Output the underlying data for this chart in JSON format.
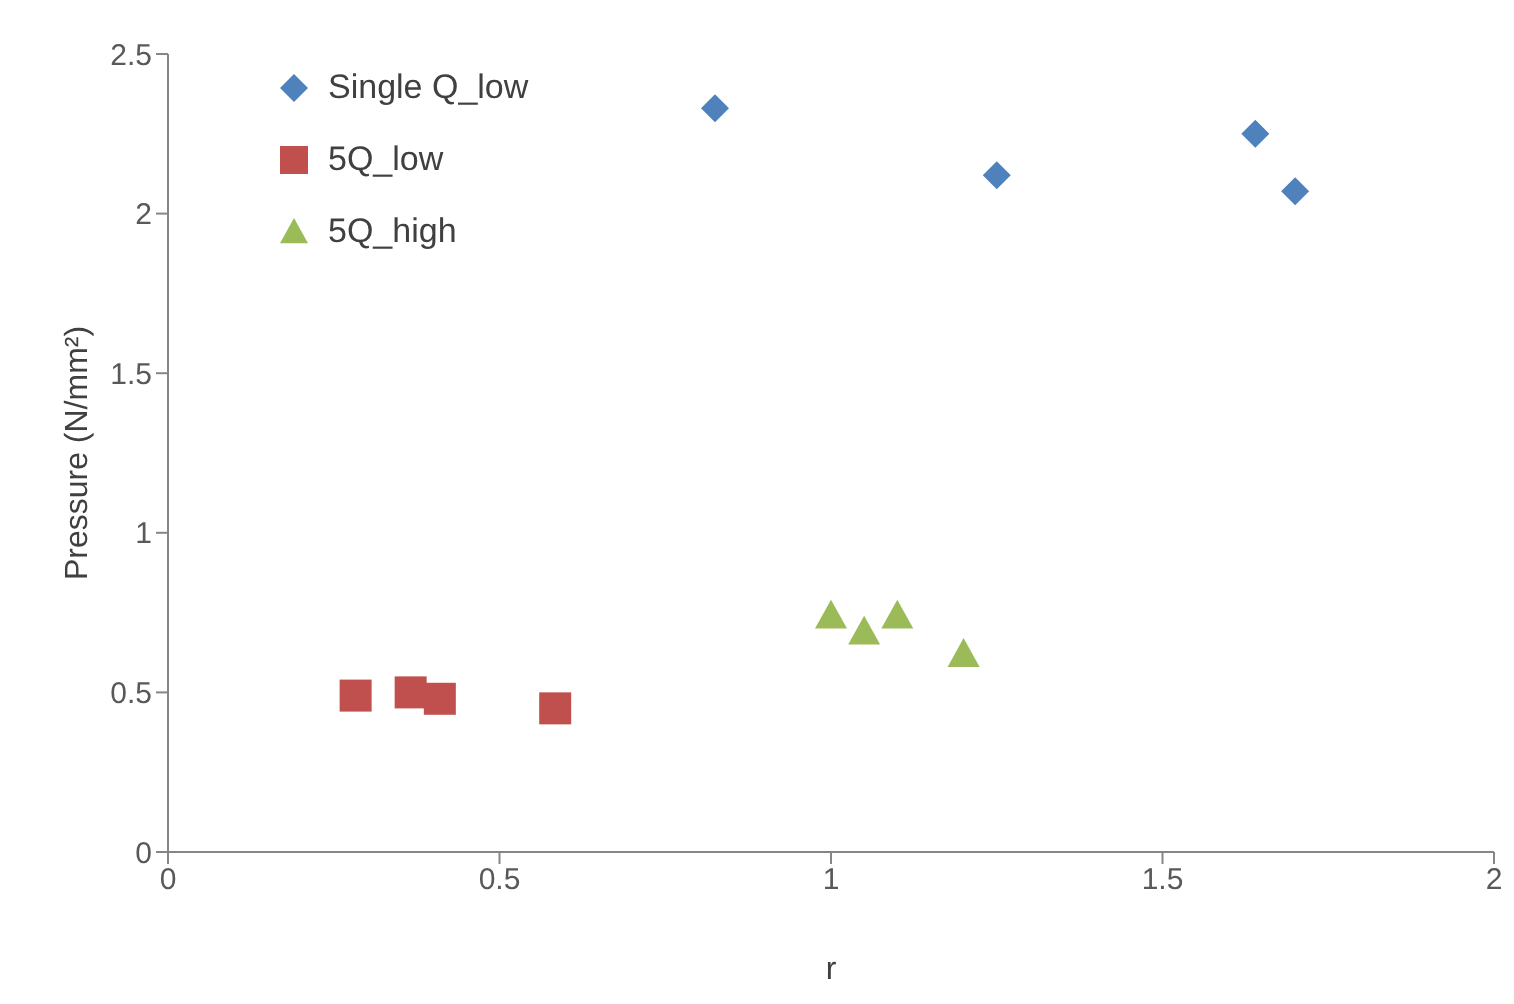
{
  "chart_data": {
    "type": "scatter",
    "xlabel": "r",
    "ylabel": "Pressure (N/mm²)",
    "xlim": [
      0,
      2
    ],
    "xticks": [
      0,
      0.5,
      1,
      1.5,
      2
    ],
    "ylim": [
      0,
      2.5
    ],
    "yticks": [
      0,
      0.5,
      1,
      1.5,
      2,
      2.5
    ],
    "grid": false,
    "legend": "top left",
    "series": [
      {
        "name": "Single Q_low",
        "color": "#4f81bd",
        "marker": "diamond",
        "x": [
          0.825,
          1.25,
          1.64,
          1.7
        ],
        "values": [
          2.33,
          2.12,
          2.25,
          2.07
        ]
      },
      {
        "name": "5Q_low",
        "color": "#c0504d",
        "marker": "square",
        "x": [
          0.283,
          0.366,
          0.41,
          0.584
        ],
        "values": [
          0.49,
          0.5,
          0.48,
          0.45
        ]
      },
      {
        "name": "5Q_high",
        "color": "#9bbb59",
        "marker": "triangle",
        "x": [
          1.0,
          1.05,
          1.1,
          1.2
        ],
        "values": [
          0.74,
          0.69,
          0.74,
          0.62
        ]
      }
    ]
  }
}
